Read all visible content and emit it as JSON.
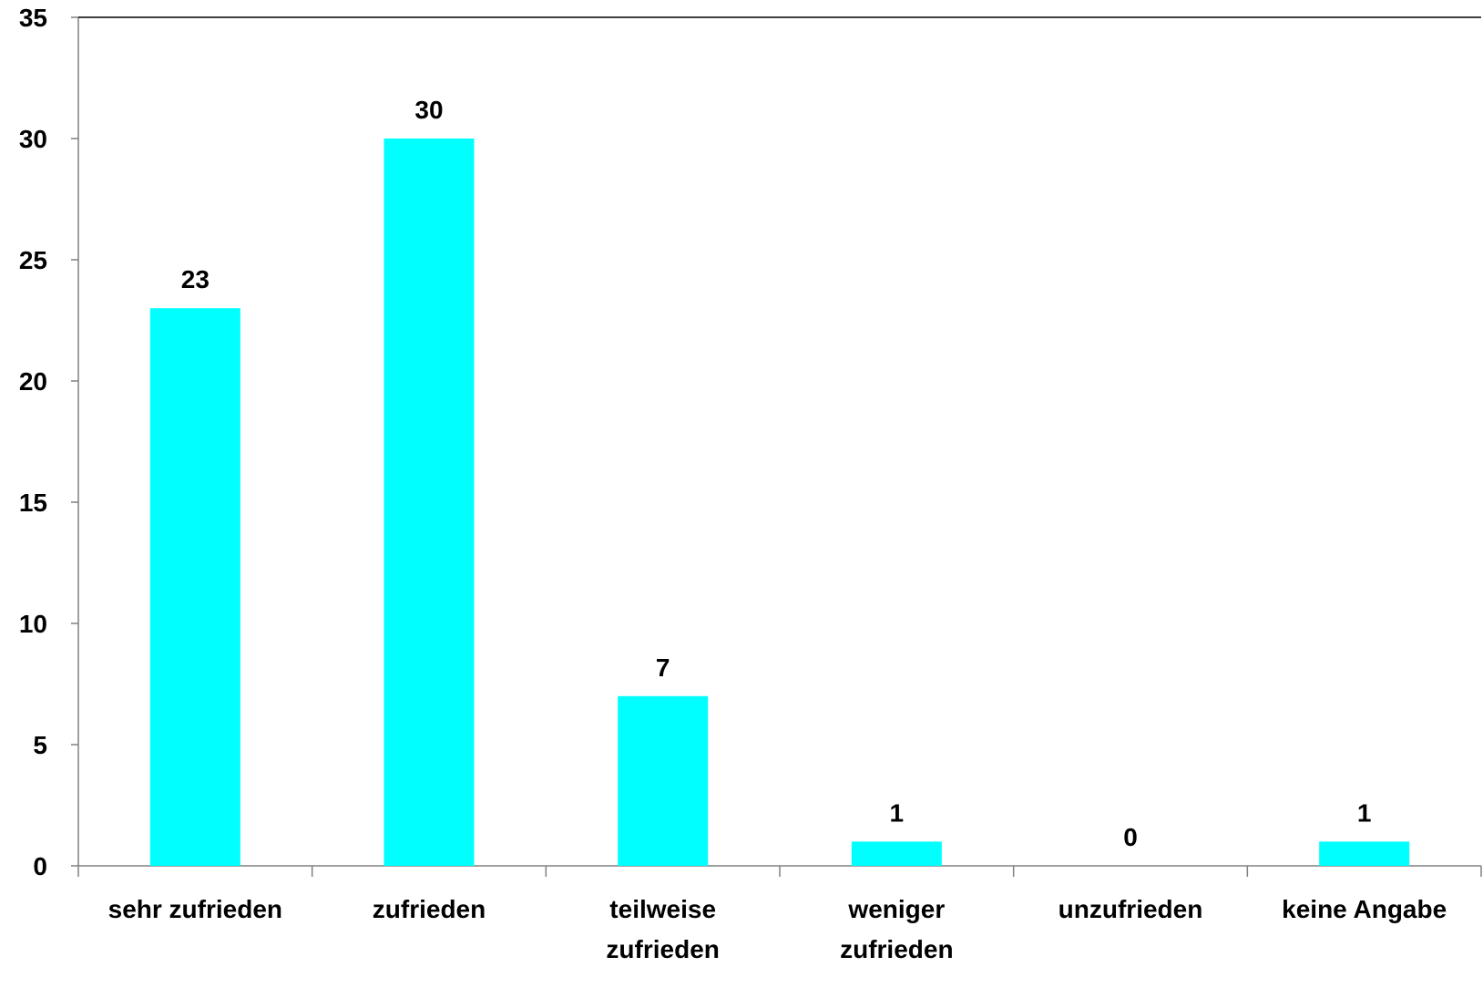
{
  "chart_data": {
    "type": "bar",
    "categories": [
      [
        "sehr zufrieden"
      ],
      [
        "zufrieden"
      ],
      [
        "teilweise",
        "zufrieden"
      ],
      [
        "weniger",
        "zufrieden"
      ],
      [
        "unzufrieden"
      ],
      [
        "keine Angabe"
      ]
    ],
    "values": [
      23,
      30,
      7,
      1,
      0,
      1
    ],
    "data_labels": [
      "23",
      "30",
      "7",
      "1",
      "0",
      "1"
    ],
    "y_ticks": [
      "0",
      "5",
      "10",
      "15",
      "20",
      "25",
      "30",
      "35"
    ],
    "ylim": [
      0,
      35
    ],
    "bar_color": "#00FFFF",
    "axis_color": "#808080",
    "grid": false,
    "legend": "none"
  }
}
